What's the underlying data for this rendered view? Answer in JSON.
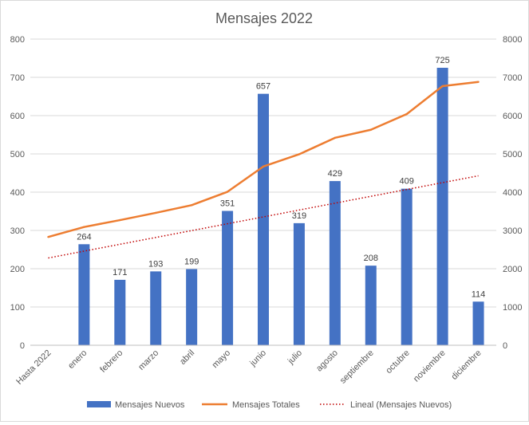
{
  "chart_data": {
    "type": "bar",
    "title": "Mensajes  2022",
    "categories": [
      "Hasta 2022",
      "enero",
      "febrero",
      "marzo",
      "abril",
      "mayo",
      "junio",
      "julio",
      "agosto",
      "septiembre",
      "octubre",
      "noviembre",
      "diciembre"
    ],
    "series": [
      {
        "name": "Mensajes Nuevos",
        "type": "bar",
        "axis": "primary",
        "color": "#4472C4",
        "values": [
          null,
          264,
          171,
          193,
          199,
          351,
          657,
          319,
          429,
          208,
          409,
          725,
          114
        ],
        "data_labels": true
      },
      {
        "name": "Mensajes Totales",
        "type": "line",
        "axis": "secondary",
        "color": "#ED7D31",
        "values": [
          2830,
          3090,
          3270,
          3460,
          3660,
          4010,
          4670,
          4990,
          5420,
          5630,
          6040,
          6770,
          6880
        ]
      },
      {
        "name": "Lineal (Mensajes Nuevos)",
        "type": "trendline",
        "style": "dotted",
        "axis": "primary",
        "color": "#C00000",
        "values": [
          228,
          245.9,
          263.8,
          281.7,
          299.6,
          317.5,
          335.4,
          353.3,
          371.2,
          389.1,
          407,
          424.9,
          442.8
        ]
      }
    ],
    "y_axis": {
      "min": 0,
      "max": 800,
      "step": 100,
      "ticks": [
        "0",
        "100",
        "200",
        "300",
        "400",
        "500",
        "600",
        "700",
        "800"
      ]
    },
    "y2_axis": {
      "min": 0,
      "max": 8000,
      "step": 1000,
      "ticks": [
        "0",
        "1000",
        "2000",
        "3000",
        "4000",
        "5000",
        "6000",
        "7000",
        "8000"
      ]
    },
    "grid": true,
    "legend_position": "bottom"
  }
}
